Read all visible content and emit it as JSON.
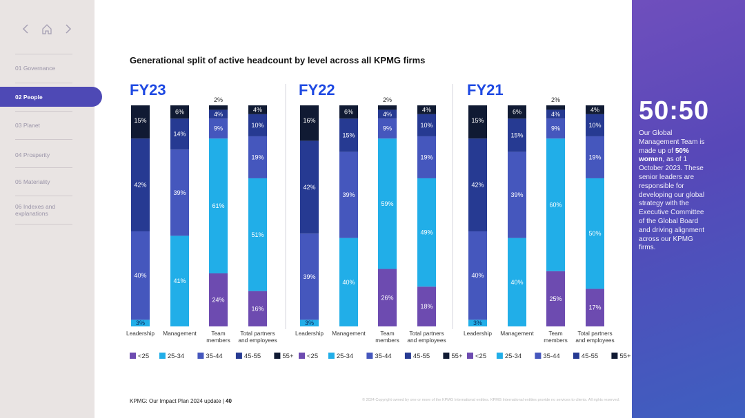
{
  "sidebar": {
    "items": [
      {
        "label": "01  Governance",
        "active": false
      },
      {
        "label": "02  People",
        "active": true
      },
      {
        "label": "03  Planet",
        "active": false
      },
      {
        "label": "04  Prosperity",
        "active": false
      },
      {
        "label": "05  Materiality",
        "active": false
      },
      {
        "label": "06  Indexes and explanations",
        "active": false
      }
    ],
    "icons": [
      "chevron-left-icon",
      "home-icon",
      "chevron-right-icon"
    ]
  },
  "title": "Generational split of active headcount by level across all KPMG firms",
  "chart_data": [
    {
      "type": "bar",
      "stacked": true,
      "title": "FY23",
      "categories": [
        "Leadership",
        "Management",
        "Team members",
        "Total partners and employees"
      ],
      "series": [
        {
          "name": "<25",
          "values": [
            0,
            0,
            24,
            16
          ]
        },
        {
          "name": "25-34",
          "values": [
            3,
            41,
            61,
            51
          ]
        },
        {
          "name": "35-44",
          "values": [
            40,
            39,
            9,
            19
          ]
        },
        {
          "name": "45-55",
          "values": [
            42,
            14,
            4,
            10
          ]
        },
        {
          "name": "55+",
          "values": [
            15,
            6,
            2,
            4
          ]
        }
      ]
    },
    {
      "type": "bar",
      "stacked": true,
      "title": "FY22",
      "categories": [
        "Leadership",
        "Management",
        "Team members",
        "Total partners and employees"
      ],
      "series": [
        {
          "name": "<25",
          "values": [
            0,
            0,
            26,
            18
          ]
        },
        {
          "name": "25-34",
          "values": [
            3,
            40,
            59,
            49
          ]
        },
        {
          "name": "35-44",
          "values": [
            39,
            39,
            9,
            19
          ]
        },
        {
          "name": "45-55",
          "values": [
            42,
            15,
            4,
            10
          ]
        },
        {
          "name": "55+",
          "values": [
            16,
            6,
            2,
            4
          ]
        }
      ]
    },
    {
      "type": "bar",
      "stacked": true,
      "title": "FY21",
      "categories": [
        "Leadership",
        "Management",
        "Team members",
        "Total partners and employees"
      ],
      "series": [
        {
          "name": "<25",
          "values": [
            0,
            0,
            25,
            17
          ]
        },
        {
          "name": "25-34",
          "values": [
            3,
            40,
            60,
            50
          ]
        },
        {
          "name": "35-44",
          "values": [
            40,
            39,
            9,
            19
          ]
        },
        {
          "name": "45-55",
          "values": [
            42,
            15,
            4,
            10
          ]
        },
        {
          "name": "55+",
          "values": [
            15,
            6,
            2,
            4
          ]
        }
      ]
    }
  ],
  "legend": [
    "<25",
    "25-34",
    "35-44",
    "45-55",
    "55+"
  ],
  "colors": {
    "<25": "#6d4bb0",
    "25-34": "#21aee8",
    "35-44": "#4557bd",
    "45-55": "#263a92",
    "55+": "#101a33",
    "accent": "#1e49e2",
    "panel": "#5748b8"
  },
  "stat": {
    "big": "50:50",
    "text_before": "Our Global Management Team is made up of ",
    "text_bold": "50% women",
    "text_after": ", as of 1 October 2023. These senior leaders are responsible for developing our global strategy with the Executive Committee of the Global Board and driving alignment across our KPMG firms."
  },
  "footer": {
    "left": "KPMG: Our Impact Plan 2024 update  |  ",
    "page": "40",
    "right": "© 2024 Copyright owned by one or more of the KPMG International entities. KPMG International entities provide no services to clients. All rights reserved."
  }
}
